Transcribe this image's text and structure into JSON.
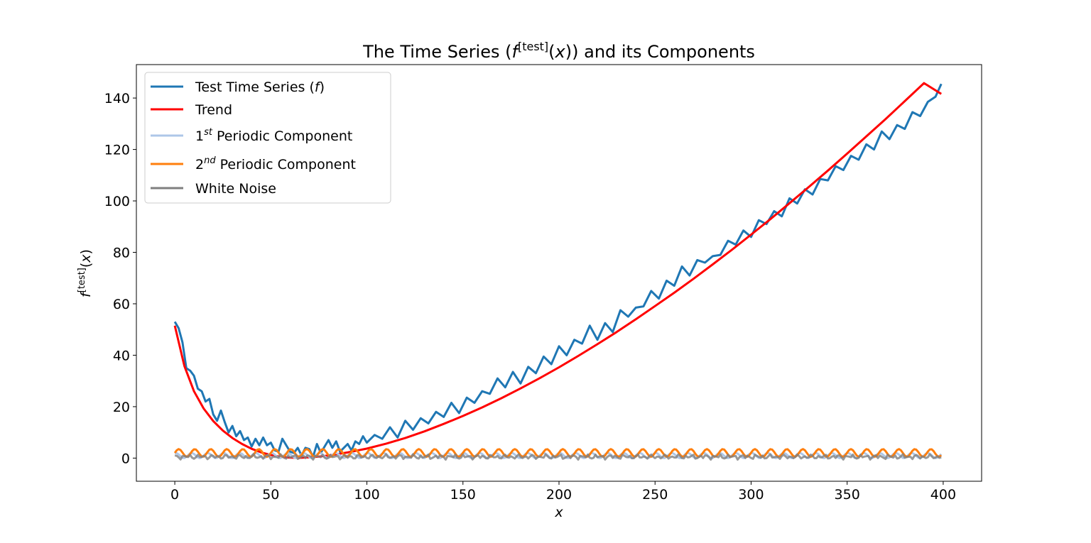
{
  "chart_data": {
    "type": "line",
    "title": {
      "pre": "The Time Series (",
      "f": "f",
      "sup": "[test]",
      "post_open": "(",
      "x": "x",
      "post_close": ")) and its Components"
    },
    "xlabel": "x",
    "ylabel": {
      "f": "f",
      "sup": "[test]",
      "open": "(",
      "x": "x",
      "close": ")"
    },
    "xlim": [
      -20,
      420
    ],
    "ylim": [
      -9,
      153
    ],
    "xticks": [
      0,
      50,
      100,
      150,
      200,
      250,
      300,
      350,
      400
    ],
    "yticks": [
      0,
      20,
      40,
      60,
      80,
      100,
      120,
      140
    ],
    "grid": false,
    "legend_position": "top-left",
    "legend": [
      {
        "key": "series_test",
        "text": "Test Time Series (",
        "ital": "f",
        "after": ")",
        "color": "#1f77b4"
      },
      {
        "key": "series_trend",
        "text": "Trend",
        "color": "#ff0000"
      },
      {
        "key": "series_p1",
        "pre": "1",
        "sup": "st",
        "text": " Periodic Component",
        "color": "#aec7e8"
      },
      {
        "key": "series_p2",
        "pre": "2",
        "sup": "nd",
        "text": " Periodic Component",
        "color": "#ff7f0e"
      },
      {
        "key": "series_noise",
        "text": "White Noise",
        "color": "#7f7f7f"
      }
    ],
    "series": [
      {
        "key": "series_trend",
        "name": "Trend",
        "color": "#ff0000",
        "x": [
          0,
          5,
          10,
          15,
          20,
          25,
          30,
          35,
          40,
          45,
          50,
          55,
          60,
          65,
          70,
          75,
          80,
          90,
          100,
          110,
          120,
          130,
          140,
          150,
          160,
          170,
          180,
          190,
          200,
          210,
          220,
          230,
          240,
          250,
          260,
          270,
          280,
          290,
          300,
          310,
          320,
          330,
          340,
          350,
          360,
          370,
          380,
          390,
          399
        ],
        "y": [
          51.5,
          35.8,
          26.0,
          19.3,
          14.4,
          10.7,
          7.8,
          5.5,
          3.6,
          2.2,
          1.2,
          0.5,
          0.2,
          0.1,
          0.3,
          0.6,
          1.0,
          2.2,
          3.7,
          5.6,
          7.8,
          10.4,
          13.3,
          16.4,
          19.7,
          23.3,
          27.1,
          31.1,
          35.3,
          39.7,
          44.3,
          49.0,
          54.0,
          59.1,
          64.3,
          69.7,
          75.3,
          81.0,
          86.9,
          92.9,
          99.1,
          105.4,
          111.8,
          118.4,
          125.1,
          131.8,
          138.8,
          145.8,
          141.6
        ]
      },
      {
        "key": "series_test",
        "name": "Test Time Series (f)",
        "color": "#1f77b4",
        "x": [
          0,
          2,
          4,
          6,
          8,
          10,
          12,
          14,
          16,
          18,
          20,
          22,
          24,
          26,
          28,
          30,
          32,
          34,
          36,
          38,
          40,
          42,
          44,
          46,
          48,
          50,
          52,
          54,
          56,
          58,
          60,
          62,
          64,
          66,
          68,
          70,
          72,
          74,
          76,
          78,
          80,
          82,
          84,
          86,
          88,
          90,
          92,
          94,
          96,
          98,
          100,
          104,
          108,
          112,
          116,
          120,
          124,
          128,
          132,
          136,
          140,
          144,
          148,
          152,
          156,
          160,
          164,
          168,
          172,
          176,
          180,
          184,
          188,
          192,
          196,
          200,
          204,
          208,
          212,
          216,
          220,
          224,
          228,
          232,
          236,
          240,
          244,
          248,
          252,
          256,
          260,
          264,
          268,
          272,
          276,
          280,
          284,
          288,
          292,
          296,
          300,
          304,
          308,
          312,
          316,
          320,
          324,
          328,
          332,
          336,
          340,
          344,
          348,
          352,
          356,
          360,
          364,
          368,
          372,
          376,
          380,
          384,
          388,
          392,
          396,
          399
        ],
        "y": [
          53.0,
          50.5,
          45.0,
          35.0,
          34.0,
          32.0,
          27.0,
          26.0,
          22.0,
          23.0,
          17.0,
          14.5,
          18.5,
          14.0,
          10.0,
          12.5,
          8.5,
          10.5,
          7.0,
          8.0,
          4.5,
          7.5,
          5.0,
          8.0,
          5.0,
          6.0,
          3.0,
          2.5,
          7.5,
          5.0,
          2.5,
          2.0,
          4.0,
          1.0,
          4.0,
          3.5,
          0.5,
          5.5,
          2.0,
          4.5,
          7.0,
          4.0,
          6.5,
          2.5,
          4.0,
          5.5,
          3.0,
          6.5,
          5.5,
          8.5,
          6.0,
          9.0,
          7.5,
          12.0,
          8.0,
          14.5,
          11.0,
          15.5,
          13.5,
          18.0,
          16.0,
          21.5,
          17.5,
          23.5,
          21.5,
          26.0,
          25.0,
          31.0,
          27.5,
          33.5,
          29.0,
          35.5,
          33.0,
          39.5,
          36.5,
          43.5,
          40.0,
          46.0,
          44.5,
          51.5,
          46.0,
          52.5,
          49.0,
          57.5,
          55.0,
          58.5,
          59.0,
          65.0,
          62.0,
          69.0,
          67.0,
          74.5,
          71.0,
          77.0,
          76.0,
          78.5,
          79.0,
          84.5,
          83.0,
          88.5,
          86.0,
          92.5,
          91.0,
          96.0,
          94.0,
          101.0,
          99.0,
          104.5,
          102.5,
          108.5,
          108.0,
          113.5,
          112.0,
          117.5,
          116.0,
          122.0,
          120.0,
          127.0,
          124.0,
          129.5,
          128.0,
          134.5,
          133.0,
          138.5,
          140.5,
          145.5
        ]
      }
    ],
    "components": {
      "p1": {
        "key": "series_p1",
        "name": "1st Periodic Component",
        "color": "#aec7e8",
        "amplitude": 1.0,
        "offset": 1.0,
        "period": 8.33
      },
      "p2": {
        "key": "series_p2",
        "name": "2nd Periodic Component",
        "color": "#ff7f0e",
        "amplitude": 1.5,
        "offset": 2.0,
        "period": 8.33
      },
      "noise": {
        "key": "series_noise",
        "name": "White Noise",
        "color": "#7f7f7f",
        "amplitude": 1.0
      }
    }
  }
}
